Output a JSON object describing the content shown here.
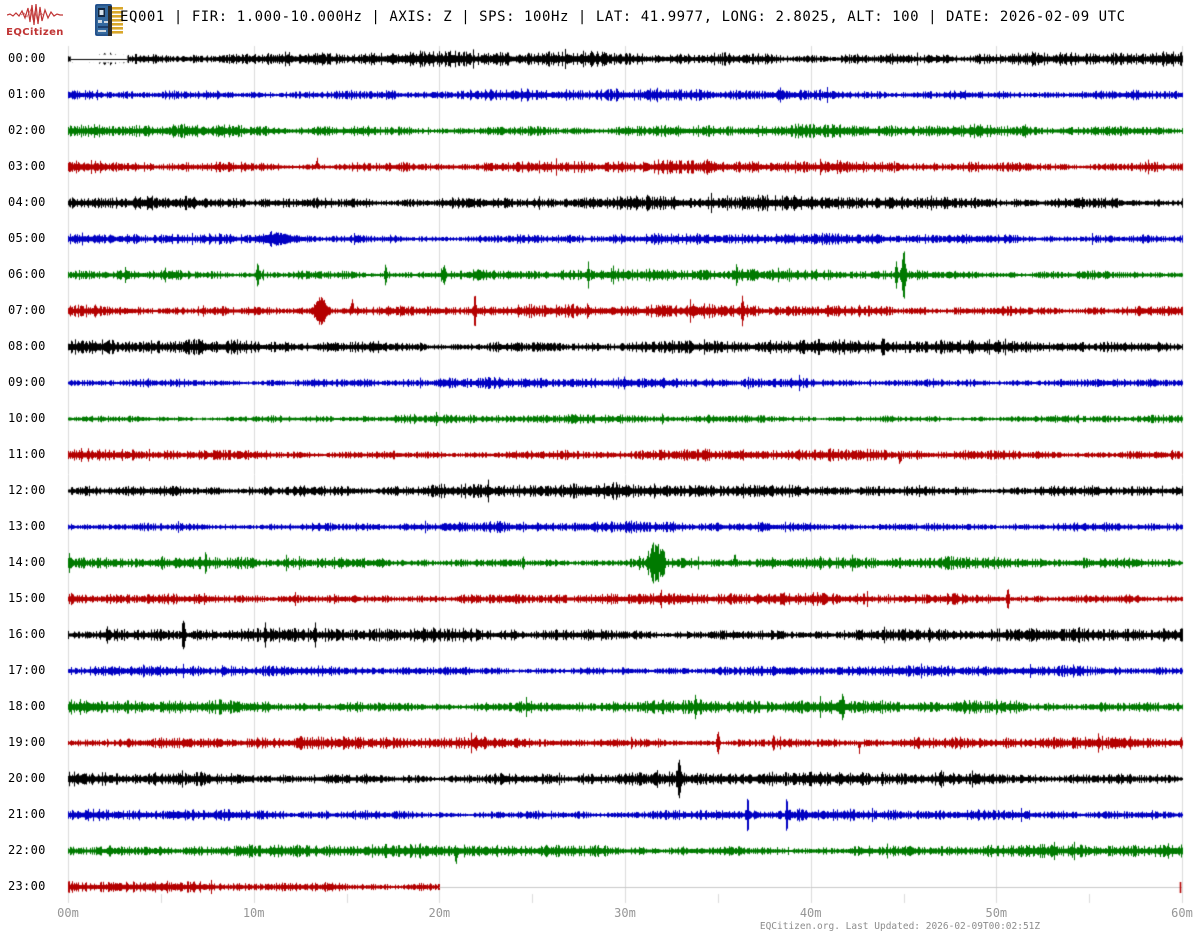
{
  "header": {
    "logo_text": "EQCitizen",
    "station_info": "EQ001 | FIR: 1.000-10.000Hz | AXIS: Z | SPS: 100Hz | LAT: 41.9977, LONG: 2.8025, ALT: 100 | DATE: 2026-02-09 UTC"
  },
  "footer": {
    "text": "EQCitizen.org. Last Updated: 2026-02-09T00:02:51Z"
  },
  "chart_data": {
    "type": "line",
    "subtype": "helicorder-dayplot",
    "title": "EQ001 | FIR: 1.000-10.000Hz | AXIS: Z | SPS: 100Hz | LAT: 41.9977, LONG: 2.8025, ALT: 100 | DATE: 2026-02-09 UTC",
    "x_axis": {
      "ticks": [
        "00m",
        "10m",
        "20m",
        "30m",
        "40m",
        "50m",
        "60m"
      ],
      "range_minutes": [
        0,
        60
      ],
      "minor_tick_interval_minutes": 5
    },
    "y_axis": {
      "unit": "hour of day UTC"
    },
    "grid": true,
    "legend": "none",
    "render_seed": 42,
    "colors": {
      "trace_cycle": [
        "#000000",
        "#0000c3",
        "#007a00",
        "#b40000"
      ],
      "grid": "#dbdbdb",
      "axis_label": "#969696",
      "no_data_line": "#c8c8c8"
    },
    "rows": [
      {
        "time": "00:00",
        "color_index": 0,
        "noise_amp": 6.0,
        "gap": [
          0.15,
          3.2
        ],
        "events": []
      },
      {
        "time": "01:00",
        "color_index": 1,
        "noise_amp": 4.8,
        "events": []
      },
      {
        "time": "02:00",
        "color_index": 2,
        "noise_amp": 5.2,
        "events": []
      },
      {
        "time": "03:00",
        "color_index": 3,
        "noise_amp": 5.2,
        "events": [
          {
            "m": 13.4,
            "a": 8,
            "w": 0.07,
            "d": 1
          }
        ]
      },
      {
        "time": "04:00",
        "color_index": 0,
        "noise_amp": 5.8,
        "events": []
      },
      {
        "time": "05:00",
        "color_index": 1,
        "noise_amp": 4.6,
        "events": [
          {
            "m": 11.3,
            "a": 5,
            "w": 0.9
          }
        ]
      },
      {
        "time": "06:00",
        "color_index": 2,
        "noise_amp": 4.8,
        "events": [
          {
            "m": 5.2,
            "a": 7,
            "w": 0.05
          },
          {
            "m": 10.2,
            "a": 12,
            "w": 0.08
          },
          {
            "m": 17.1,
            "a": 9,
            "w": 0.06
          },
          {
            "m": 20.2,
            "a": 9,
            "w": 0.1
          },
          {
            "m": 28.0,
            "a": 11,
            "w": 0.07
          },
          {
            "m": 36.0,
            "a": 11,
            "w": 0.06
          },
          {
            "m": 44.6,
            "a": 15,
            "w": 0.07
          },
          {
            "m": 45.0,
            "a": 22,
            "w": 0.12
          }
        ]
      },
      {
        "time": "07:00",
        "color_index": 3,
        "noise_amp": 5.2,
        "events": [
          {
            "m": 13.6,
            "a": 13,
            "w": 0.35
          },
          {
            "m": 15.3,
            "a": 13,
            "w": 0.06,
            "d": 1
          },
          {
            "m": 21.9,
            "a": 14,
            "w": 0.08
          },
          {
            "m": 28.0,
            "a": 7,
            "w": 0.06
          },
          {
            "m": 33.5,
            "a": 7,
            "w": 0.05
          },
          {
            "m": 36.3,
            "a": 10,
            "w": 0.07
          }
        ]
      },
      {
        "time": "08:00",
        "color_index": 0,
        "noise_amp": 5.8,
        "events": [
          {
            "m": 43.9,
            "a": 8,
            "w": 0.06
          }
        ]
      },
      {
        "time": "09:00",
        "color_index": 1,
        "noise_amp": 4.4,
        "events": []
      },
      {
        "time": "10:00",
        "color_index": 2,
        "noise_amp": 3.6,
        "events": [
          {
            "m": 32.0,
            "a": 5,
            "w": 0.05
          }
        ]
      },
      {
        "time": "11:00",
        "color_index": 3,
        "noise_amp": 4.6,
        "events": [
          {
            "m": 44.8,
            "a": 12,
            "w": 0.06,
            "d": -1
          }
        ]
      },
      {
        "time": "12:00",
        "color_index": 0,
        "noise_amp": 5.8,
        "events": []
      },
      {
        "time": "13:00",
        "color_index": 1,
        "noise_amp": 4.4,
        "events": []
      },
      {
        "time": "14:00",
        "color_index": 2,
        "noise_amp": 4.8,
        "events": [
          {
            "m": 7.4,
            "a": 8,
            "w": 0.06
          },
          {
            "m": 24.5,
            "a": 7,
            "w": 0.05
          },
          {
            "m": 31.6,
            "a": 21,
            "w": 0.3
          },
          {
            "m": 32.0,
            "a": 15,
            "w": 0.12
          },
          {
            "m": 35.9,
            "a": 11,
            "w": 0.06,
            "d": 1
          }
        ]
      },
      {
        "time": "15:00",
        "color_index": 3,
        "noise_amp": 5.0,
        "events": [
          {
            "m": 12.2,
            "a": 6,
            "w": 0.05
          },
          {
            "m": 50.6,
            "a": 10,
            "w": 0.07
          }
        ]
      },
      {
        "time": "16:00",
        "color_index": 0,
        "noise_amp": 5.6,
        "events": [
          {
            "m": 2.1,
            "a": 7,
            "w": 0.05
          },
          {
            "m": 6.2,
            "a": 20,
            "w": 0.07
          },
          {
            "m": 10.6,
            "a": 14,
            "w": 0.06
          },
          {
            "m": 13.3,
            "a": 11,
            "w": 0.06
          }
        ]
      },
      {
        "time": "17:00",
        "color_index": 1,
        "noise_amp": 4.4,
        "events": []
      },
      {
        "time": "18:00",
        "color_index": 2,
        "noise_amp": 5.8,
        "events": [
          {
            "m": 33.8,
            "a": 7,
            "w": 0.06
          },
          {
            "m": 50.0,
            "a": 6,
            "w": 0.05
          }
        ]
      },
      {
        "time": "19:00",
        "color_index": 3,
        "noise_amp": 5.0,
        "events": [
          {
            "m": 35.0,
            "a": 13,
            "w": 0.08
          },
          {
            "m": 38.0,
            "a": 8,
            "w": 0.06
          },
          {
            "m": 42.6,
            "a": 10,
            "w": 0.06,
            "d": -1
          },
          {
            "m": 55.5,
            "a": 8,
            "w": 0.06
          }
        ]
      },
      {
        "time": "20:00",
        "color_index": 0,
        "noise_amp": 5.8,
        "events": [
          {
            "m": 32.9,
            "a": 20,
            "w": 0.07
          }
        ]
      },
      {
        "time": "21:00",
        "color_index": 1,
        "noise_amp": 4.5,
        "events": [
          {
            "m": 36.6,
            "a": 15,
            "w": 0.07
          },
          {
            "m": 38.7,
            "a": 15,
            "w": 0.06
          }
        ]
      },
      {
        "time": "22:00",
        "color_index": 2,
        "noise_amp": 5.4,
        "events": [
          {
            "m": 20.9,
            "a": 12,
            "w": 0.07,
            "d": -1
          }
        ]
      },
      {
        "time": "23:00",
        "color_index": 3,
        "noise_amp": 5.2,
        "data_end_minute": 20,
        "end_mark": true,
        "events": []
      }
    ]
  }
}
